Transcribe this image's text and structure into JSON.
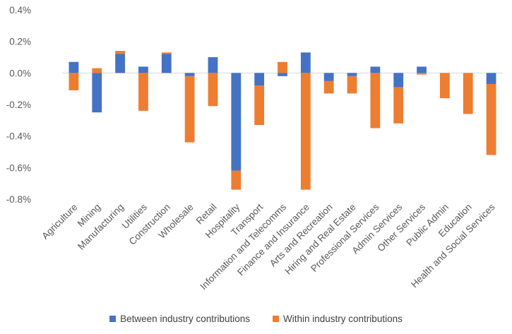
{
  "chart_data": {
    "type": "bar",
    "stacked": true,
    "categories": [
      "Agriculture",
      "Mining",
      "Manufacturing",
      "Utilities",
      "Construction",
      "Wholesale",
      "Retail",
      "Hospitality",
      "Transport",
      "Information and Telecomms",
      "Finance and Insurance",
      "Arts and Recreation",
      "Hiring and Real Estate",
      "Professional Services",
      "Admin Services",
      "Other Services",
      "Public Admin",
      "Education",
      "Health and Social Services"
    ],
    "series": [
      {
        "name": "Between industry contributions",
        "color": "#4472C4",
        "values": [
          0.07,
          -0.25,
          0.12,
          0.04,
          0.12,
          -0.02,
          0.1,
          -0.62,
          -0.08,
          -0.02,
          0.13,
          -0.05,
          -0.02,
          0.04,
          -0.09,
          0.04,
          0.0,
          0.0,
          -0.07
        ]
      },
      {
        "name": "Within industry contributions",
        "color": "#ED7D31",
        "values": [
          -0.11,
          0.03,
          0.02,
          -0.24,
          0.01,
          -0.42,
          -0.21,
          -0.12,
          -0.25,
          0.07,
          -0.74,
          -0.08,
          -0.11,
          -0.35,
          -0.23,
          -0.01,
          -0.16,
          -0.26,
          -0.45
        ]
      }
    ],
    "yticks": [
      "0.4%",
      "0.2%",
      "0.0%",
      "-0.2%",
      "-0.4%",
      "-0.6%",
      "-0.8%"
    ],
    "ylim": [
      -0.8,
      0.4
    ],
    "legend_position": "bottom",
    "grid": false
  }
}
